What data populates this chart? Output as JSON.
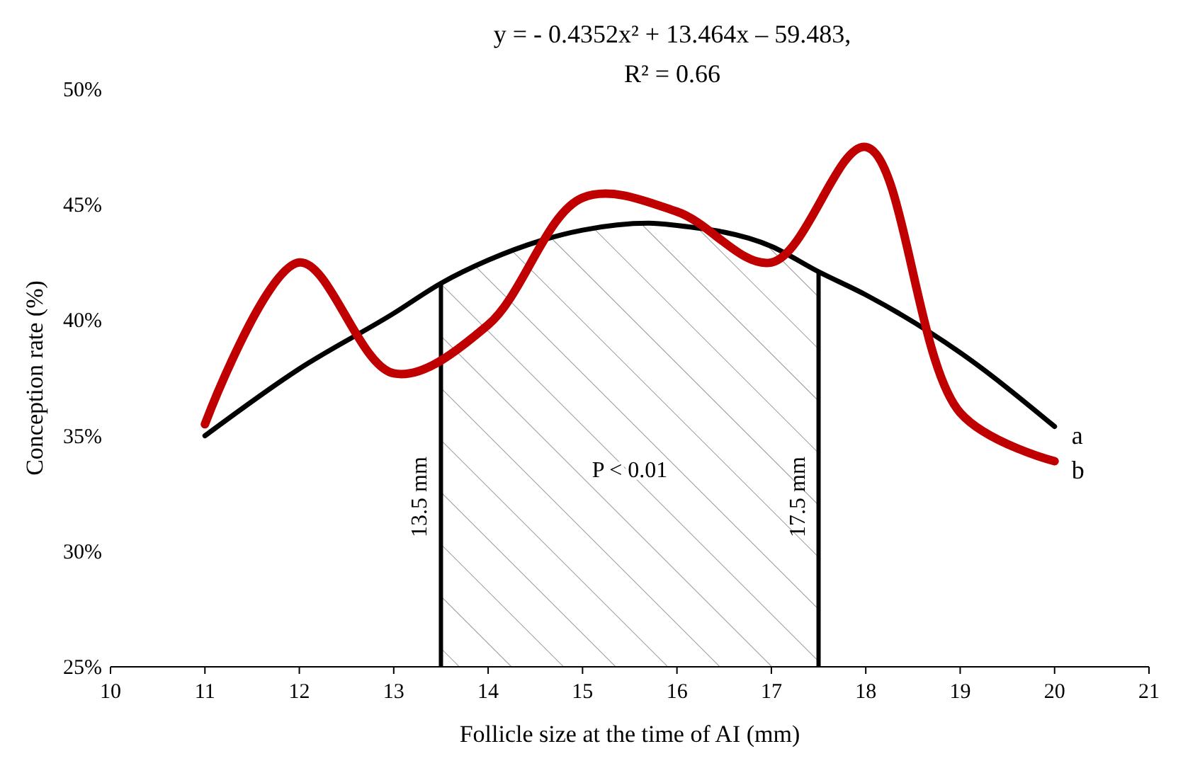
{
  "chart_data": {
    "type": "line",
    "title": "y = - 0.4352x² + 13.464x – 59.483,",
    "subtitle": "R² = 0.66",
    "xlabel": "Follicle size at the time of AI (mm)",
    "ylabel": "Conception rate (%)",
    "xlim": [
      10,
      21
    ],
    "xticks": [
      10,
      11,
      12,
      13,
      14,
      15,
      16,
      17,
      18,
      19,
      20,
      21
    ],
    "ylim": [
      25,
      50
    ],
    "yticks": [
      {
        "value": 25,
        "label": "25%"
      },
      {
        "value": 30,
        "label": "30%"
      },
      {
        "value": 35,
        "label": "35%"
      },
      {
        "value": 40,
        "label": "40%"
      },
      {
        "value": 45,
        "label": "45%"
      },
      {
        "value": 50,
        "label": "50%"
      }
    ],
    "series": [
      {
        "name": "a",
        "color": "#000000",
        "x": [
          11,
          12,
          13,
          13.5,
          14,
          15,
          15.7,
          16,
          17,
          17.5,
          18,
          19,
          20
        ],
        "values": [
          35.0,
          37.9,
          40.3,
          41.6,
          42.6,
          43.9,
          44.2,
          44.1,
          43.2,
          42.1,
          41.1,
          38.6,
          35.4
        ]
      },
      {
        "name": "b",
        "color": "#c00000",
        "x": [
          11,
          12,
          13,
          14,
          15,
          16,
          17,
          18,
          19,
          20
        ],
        "values": [
          35.5,
          42.5,
          37.7,
          39.8,
          45.3,
          44.7,
          42.5,
          47.5,
          36.0,
          33.9
        ]
      }
    ],
    "ref_lines": [
      {
        "axis": "x",
        "value": 13.5,
        "label": "13.5 mm",
        "color": "#000000"
      },
      {
        "axis": "x",
        "value": 17.5,
        "label": "17.5 mm",
        "color": "#000000"
      }
    ],
    "bands": [
      {
        "axis": "x",
        "from": 13.5,
        "to": 17.5,
        "label": "P < 0.01",
        "color": "#999999"
      }
    ],
    "grid": false,
    "marker": "none",
    "line_style": "solid"
  }
}
